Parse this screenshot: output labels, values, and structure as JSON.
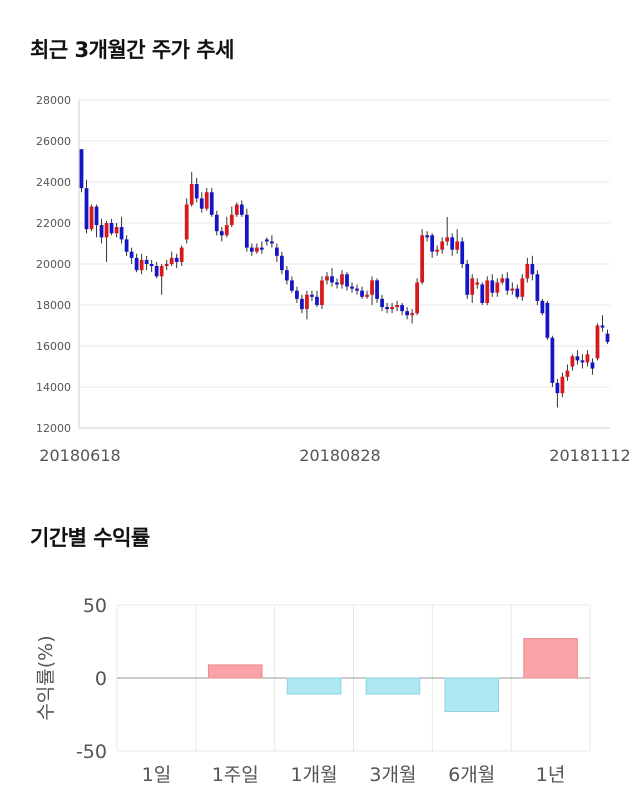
{
  "section1_title": "최근 3개월간 주가 추세",
  "section2_title": "기간별 수익률",
  "colors": {
    "up": "#d7191c",
    "down": "#1515c8",
    "positive_bar": "#f9a3a6",
    "negative_bar": "#aee9f3",
    "grid": "#e8e8e8"
  },
  "chart_data": [
    {
      "type": "candlestick",
      "title": "최근 3개월간 주가 추세",
      "ylim": [
        12000,
        28000
      ],
      "y_ticks": [
        "28000",
        "26000",
        "24000",
        "22000",
        "20000",
        "18000",
        "16000",
        "14000",
        "12000"
      ],
      "x_labels": [
        "20180618",
        "20180828",
        "20181112"
      ],
      "grid": true,
      "candles": [
        [
          25600,
          23700,
          25600,
          23500
        ],
        [
          23700,
          21700,
          24100,
          21500
        ],
        [
          21700,
          22800,
          22900,
          21600
        ],
        [
          22800,
          21900,
          22900,
          21300
        ],
        [
          21900,
          21300,
          22200,
          21000
        ],
        [
          21300,
          22000,
          22100,
          20100
        ],
        [
          22000,
          21500,
          22200,
          21400
        ],
        [
          21500,
          21800,
          22000,
          21300
        ],
        [
          21800,
          21200,
          22300,
          21000
        ],
        [
          21200,
          20600,
          21400,
          20400
        ],
        [
          20600,
          20300,
          20800,
          20000
        ],
        [
          20300,
          19700,
          20500,
          19600
        ],
        [
          19700,
          20200,
          20500,
          19500
        ],
        [
          20200,
          20000,
          20400,
          19700
        ],
        [
          20000,
          19900,
          20200,
          19600
        ],
        [
          19900,
          19400,
          20100,
          19300
        ],
        [
          19400,
          19900,
          20000,
          18500
        ],
        [
          19900,
          20000,
          20200,
          19700
        ],
        [
          20000,
          20300,
          20600,
          19900
        ],
        [
          20300,
          20100,
          20500,
          19800
        ],
        [
          20100,
          20800,
          20900,
          19900
        ],
        [
          21200,
          22900,
          23200,
          21000
        ],
        [
          22900,
          23900,
          24500,
          22800
        ],
        [
          23900,
          23200,
          24200,
          23000
        ],
        [
          23200,
          22700,
          23500,
          22500
        ],
        [
          22700,
          23500,
          23700,
          22600
        ],
        [
          23500,
          22400,
          23700,
          22300
        ],
        [
          22400,
          21600,
          22600,
          21400
        ],
        [
          21600,
          21400,
          21800,
          21100
        ],
        [
          21400,
          21900,
          22300,
          21300
        ],
        [
          21900,
          22400,
          22800,
          21800
        ],
        [
          22400,
          22900,
          23000,
          22300
        ],
        [
          22900,
          22400,
          23100,
          22300
        ],
        [
          22400,
          20800,
          22700,
          20600
        ],
        [
          20800,
          20600,
          21000,
          20400
        ],
        [
          20600,
          20800,
          21000,
          20500
        ],
        [
          20800,
          20700,
          21100,
          20500
        ],
        [
          21200,
          21100,
          21300,
          20900
        ],
        [
          21100,
          21000,
          21400,
          20800
        ],
        [
          20800,
          20400,
          21000,
          20100
        ],
        [
          20400,
          19700,
          20600,
          19500
        ],
        [
          19700,
          19200,
          19900,
          19000
        ],
        [
          19200,
          18700,
          19400,
          18600
        ],
        [
          18700,
          18300,
          18900,
          18100
        ],
        [
          18300,
          17800,
          18500,
          17600
        ],
        [
          17800,
          18500,
          18700,
          17300
        ],
        [
          18500,
          18400,
          18700,
          18200
        ],
        [
          18400,
          18000,
          18700,
          17900
        ],
        [
          18000,
          19200,
          19400,
          17800
        ],
        [
          19200,
          19400,
          19600,
          19000
        ],
        [
          19400,
          19100,
          19800,
          18900
        ],
        [
          19100,
          19000,
          19300,
          18800
        ],
        [
          19000,
          19500,
          19700,
          18800
        ],
        [
          19500,
          18900,
          19600,
          18700
        ],
        [
          18900,
          18800,
          19100,
          18600
        ],
        [
          18800,
          18700,
          19000,
          18500
        ],
        [
          18700,
          18400,
          18900,
          18300
        ],
        [
          18400,
          18500,
          18700,
          18300
        ],
        [
          18500,
          19200,
          19400,
          18000
        ],
        [
          19200,
          18300,
          19300,
          18100
        ],
        [
          18300,
          17900,
          18500,
          17700
        ],
        [
          17900,
          17800,
          18100,
          17600
        ],
        [
          17800,
          17900,
          18100,
          17600
        ],
        [
          17900,
          18000,
          18200,
          17700
        ],
        [
          18000,
          17700,
          18100,
          17500
        ],
        [
          17700,
          17500,
          17900,
          17300
        ],
        [
          17500,
          17600,
          17800,
          17100
        ],
        [
          17600,
          19100,
          19300,
          17500
        ],
        [
          19100,
          21400,
          21700,
          19000
        ],
        [
          21400,
          21300,
          21600,
          21100
        ],
        [
          21400,
          20600,
          21500,
          20300
        ],
        [
          20600,
          20700,
          20900,
          20400
        ],
        [
          20700,
          21100,
          21300,
          20500
        ],
        [
          21100,
          21300,
          22300,
          20900
        ],
        [
          21300,
          20700,
          21500,
          20400
        ],
        [
          20700,
          21100,
          21700,
          20500
        ],
        [
          21100,
          20000,
          21300,
          19800
        ],
        [
          20000,
          18500,
          20200,
          18300
        ],
        [
          18500,
          19300,
          19500,
          18100
        ],
        [
          19000,
          19100,
          19300,
          18800
        ],
        [
          19000,
          18100,
          19100,
          18000
        ],
        [
          18100,
          19200,
          19400,
          18000
        ],
        [
          19200,
          18600,
          19500,
          18400
        ],
        [
          18600,
          19100,
          19300,
          18400
        ],
        [
          19100,
          19300,
          19500,
          19000
        ],
        [
          19300,
          18700,
          19600,
          18500
        ],
        [
          18700,
          18800,
          19100,
          18500
        ],
        [
          18800,
          18400,
          19000,
          18300
        ],
        [
          18400,
          19300,
          19500,
          18200
        ],
        [
          19300,
          20000,
          20300,
          19100
        ],
        [
          20000,
          19500,
          20400,
          19200
        ],
        [
          19500,
          18200,
          19700,
          18000
        ],
        [
          18200,
          17600,
          18300,
          17500
        ],
        [
          18100,
          16400,
          18200,
          16300
        ],
        [
          16400,
          14200,
          16500,
          14000
        ],
        [
          14200,
          13700,
          14400,
          13000
        ],
        [
          13700,
          14500,
          14700,
          13500
        ],
        [
          14500,
          14800,
          15100,
          14300
        ],
        [
          15000,
          15500,
          15600,
          14800
        ],
        [
          15500,
          15300,
          15800,
          15100
        ],
        [
          15300,
          15200,
          15600,
          14900
        ],
        [
          15200,
          15600,
          15800,
          15000
        ],
        [
          15200,
          14900,
          15400,
          14600
        ],
        [
          15400,
          17000,
          17100,
          15300
        ],
        [
          17000,
          16900,
          17500,
          16700
        ],
        [
          16600,
          16200,
          16800,
          16100
        ]
      ]
    },
    {
      "type": "bar",
      "title": "기간별 수익률",
      "ylabel": "수익률(%)",
      "ylim": [
        -50,
        50
      ],
      "y_ticks": [
        "50",
        "0",
        "-50"
      ],
      "categories": [
        "1일",
        "1주일",
        "1개월",
        "3개월",
        "6개월",
        "1년"
      ],
      "values": [
        0,
        9,
        -11,
        -11,
        -23,
        27
      ],
      "grid": true
    }
  ]
}
